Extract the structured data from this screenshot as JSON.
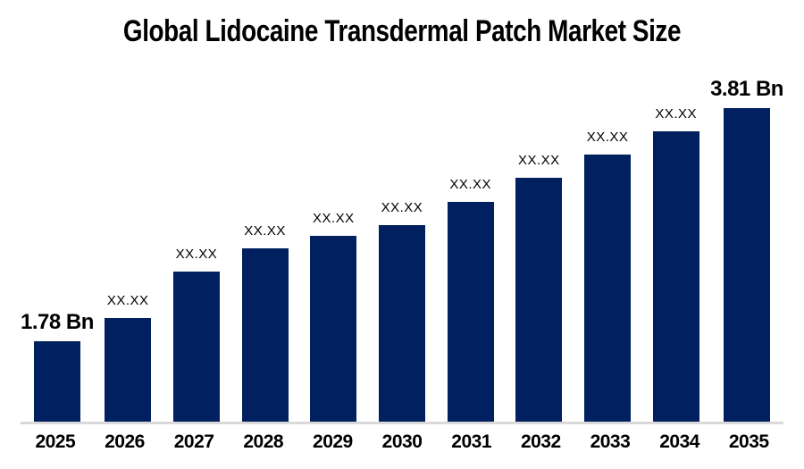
{
  "chart_data": {
    "type": "bar",
    "title": "Global Lidocaine Transdermal Patch Market Size",
    "unit": "Bn",
    "categories": [
      "2025",
      "2026",
      "2027",
      "2028",
      "2029",
      "2030",
      "2031",
      "2032",
      "2033",
      "2034",
      "2035"
    ],
    "values": [
      1.78,
      null,
      null,
      null,
      null,
      null,
      null,
      null,
      null,
      null,
      3.81
    ],
    "bar_labels": [
      "1.78 Bn",
      "XX.XX",
      "XX.XX",
      "XX.XX",
      "XX.XX",
      "XX.XX",
      "XX.XX",
      "XX.XX",
      "XX.XX",
      "XX.XX",
      "3.81 Bn"
    ],
    "bar_heights_rel": [
      0.259,
      0.332,
      0.48,
      0.554,
      0.594,
      0.628,
      0.702,
      0.778,
      0.852,
      0.926,
      1.0
    ],
    "bar_color": "#002060",
    "axis_line_color": "#d9d9d9",
    "label_color": "#000000",
    "grid": false,
    "legend": false,
    "y_axis_labels_visible": false,
    "xlabel": "",
    "ylabel": ""
  }
}
